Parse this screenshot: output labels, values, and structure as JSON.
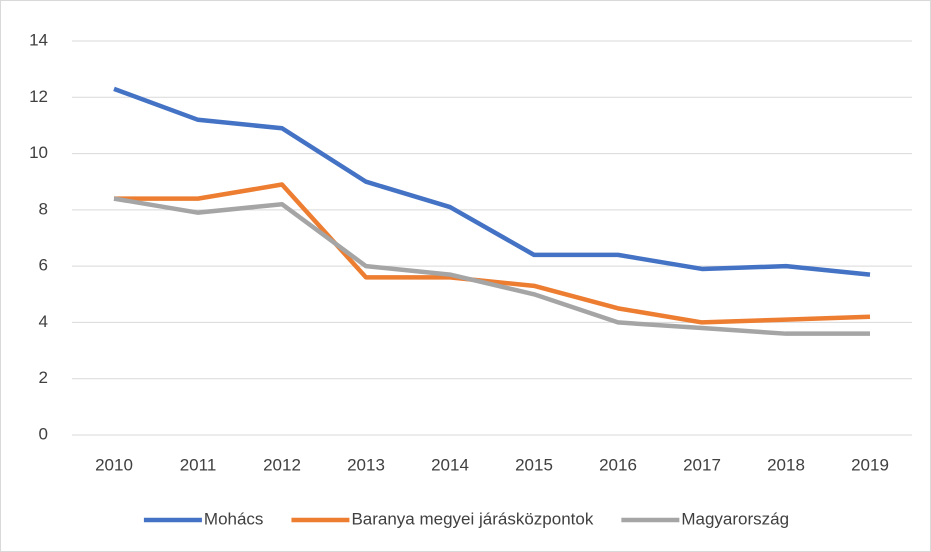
{
  "chart_data": {
    "type": "line",
    "categories": [
      "2010",
      "2011",
      "2012",
      "2013",
      "2014",
      "2015",
      "2016",
      "2017",
      "2018",
      "2019"
    ],
    "series": [
      {
        "name": "Mohács",
        "color": "#4472c4",
        "values": [
          12.3,
          11.2,
          10.9,
          9.0,
          8.1,
          6.4,
          6.4,
          5.9,
          6.0,
          5.7
        ]
      },
      {
        "name": "Baranya megyei járásközpontok",
        "color": "#ed7d31",
        "values": [
          8.4,
          8.4,
          8.9,
          5.6,
          5.6,
          5.3,
          4.5,
          4.0,
          4.1,
          4.2
        ]
      },
      {
        "name": "Magyarország",
        "color": "#a5a5a5",
        "values": [
          8.4,
          7.9,
          8.2,
          6.0,
          5.7,
          5.0,
          4.0,
          3.8,
          3.6,
          3.6
        ]
      }
    ],
    "ylim": [
      0,
      14
    ],
    "yticks": [
      0,
      2,
      4,
      6,
      8,
      10,
      12,
      14
    ],
    "grid": true,
    "legend": "bottom"
  }
}
